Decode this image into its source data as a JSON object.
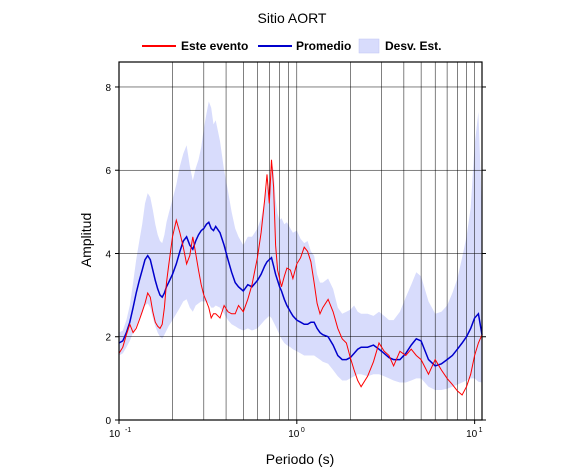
{
  "chart_data": {
    "type": "line",
    "title": "Sitio AORT",
    "xlabel": "Periodo (s)",
    "ylabel": "Amplitud",
    "x_scale": "log",
    "xlim": [
      0.1,
      11.0
    ],
    "ylim": [
      0,
      8.6
    ],
    "grid": true,
    "legend_position": "top",
    "legend": [
      "Este evento",
      "Promedio",
      "Desv. Est."
    ],
    "x_ticks": [
      {
        "value": 0.1,
        "base": "10",
        "exp": "-1"
      },
      {
        "value": 1,
        "base": "10",
        "exp": "0"
      },
      {
        "value": 10,
        "base": "10",
        "exp": "1"
      }
    ],
    "y_ticks": [
      0,
      2,
      4,
      6,
      8
    ],
    "colors": {
      "este_evento": "#ff0000",
      "promedio": "#0000cc",
      "desv_est": "#d8dcfc"
    },
    "series": [
      {
        "name": "Este evento",
        "x": [
          0.1,
          0.105,
          0.11,
          0.115,
          0.12,
          0.125,
          0.13,
          0.135,
          0.14,
          0.145,
          0.15,
          0.155,
          0.16,
          0.165,
          0.17,
          0.175,
          0.18,
          0.185,
          0.19,
          0.2,
          0.21,
          0.22,
          0.23,
          0.24,
          0.25,
          0.26,
          0.27,
          0.28,
          0.29,
          0.3,
          0.31,
          0.32,
          0.33,
          0.34,
          0.35,
          0.37,
          0.39,
          0.41,
          0.43,
          0.45,
          0.47,
          0.5,
          0.53,
          0.56,
          0.6,
          0.63,
          0.66,
          0.68,
          0.7,
          0.72,
          0.74,
          0.76,
          0.78,
          0.8,
          0.82,
          0.85,
          0.88,
          0.92,
          0.95,
          1.0,
          1.05,
          1.1,
          1.15,
          1.2,
          1.25,
          1.3,
          1.35,
          1.4,
          1.5,
          1.6,
          1.7,
          1.8,
          1.9,
          2.0,
          2.1,
          2.2,
          2.3,
          2.5,
          2.7,
          2.9,
          3.1,
          3.3,
          3.5,
          3.8,
          4.1,
          4.4,
          4.7,
          5.0,
          5.5,
          6.0,
          6.5,
          7.0,
          7.5,
          8.0,
          8.5,
          9.0,
          9.5,
          10.0,
          10.5,
          11.0
        ],
        "values": [
          1.6,
          1.75,
          2.05,
          2.3,
          2.1,
          2.2,
          2.4,
          2.6,
          2.8,
          3.05,
          2.95,
          2.6,
          2.35,
          2.25,
          2.2,
          2.3,
          2.7,
          3.3,
          3.7,
          4.4,
          4.8,
          4.5,
          4.15,
          3.75,
          3.95,
          4.4,
          4.0,
          3.6,
          3.25,
          3.0,
          2.85,
          2.7,
          2.45,
          2.55,
          2.55,
          2.45,
          2.75,
          2.6,
          2.55,
          2.55,
          2.75,
          2.6,
          2.9,
          3.25,
          3.9,
          4.5,
          5.3,
          5.9,
          5.2,
          6.25,
          5.6,
          4.2,
          3.6,
          3.4,
          3.2,
          3.45,
          3.65,
          3.6,
          3.4,
          3.75,
          3.9,
          4.15,
          4.05,
          3.8,
          3.3,
          2.8,
          2.55,
          2.7,
          2.9,
          2.6,
          2.2,
          1.95,
          1.85,
          1.5,
          1.2,
          0.95,
          0.8,
          1.05,
          1.4,
          1.85,
          1.65,
          1.55,
          1.3,
          1.65,
          1.55,
          1.7,
          1.55,
          1.45,
          1.1,
          1.45,
          1.2,
          1.0,
          0.85,
          0.7,
          0.6,
          0.8,
          1.1,
          1.55,
          1.85,
          2.05
        ]
      },
      {
        "name": "Promedio",
        "x": [
          0.1,
          0.105,
          0.11,
          0.115,
          0.12,
          0.125,
          0.13,
          0.135,
          0.14,
          0.145,
          0.15,
          0.155,
          0.16,
          0.165,
          0.17,
          0.175,
          0.18,
          0.185,
          0.19,
          0.2,
          0.21,
          0.22,
          0.23,
          0.24,
          0.25,
          0.26,
          0.27,
          0.28,
          0.29,
          0.3,
          0.31,
          0.32,
          0.33,
          0.34,
          0.35,
          0.37,
          0.39,
          0.41,
          0.43,
          0.45,
          0.47,
          0.5,
          0.53,
          0.56,
          0.6,
          0.63,
          0.66,
          0.68,
          0.7,
          0.72,
          0.74,
          0.76,
          0.78,
          0.8,
          0.82,
          0.85,
          0.88,
          0.92,
          0.95,
          1.0,
          1.05,
          1.1,
          1.15,
          1.2,
          1.25,
          1.3,
          1.35,
          1.4,
          1.5,
          1.6,
          1.7,
          1.8,
          1.9,
          2.0,
          2.1,
          2.2,
          2.3,
          2.5,
          2.7,
          2.9,
          3.1,
          3.3,
          3.5,
          3.8,
          4.1,
          4.4,
          4.7,
          5.0,
          5.5,
          6.0,
          6.5,
          7.0,
          7.5,
          8.0,
          8.5,
          9.0,
          9.5,
          10.0,
          10.5,
          11.0
        ],
        "values": [
          1.85,
          1.9,
          2.1,
          2.35,
          2.7,
          3.05,
          3.35,
          3.6,
          3.85,
          3.95,
          3.85,
          3.6,
          3.35,
          3.15,
          3.0,
          2.95,
          3.05,
          3.2,
          3.3,
          3.5,
          3.75,
          4.05,
          4.3,
          4.4,
          4.2,
          4.1,
          4.3,
          4.45,
          4.55,
          4.6,
          4.7,
          4.75,
          4.6,
          4.55,
          4.65,
          4.5,
          4.2,
          3.85,
          3.55,
          3.3,
          3.2,
          3.1,
          3.25,
          3.2,
          3.35,
          3.5,
          3.7,
          3.8,
          3.85,
          3.9,
          3.7,
          3.5,
          3.35,
          3.2,
          3.1,
          2.9,
          2.75,
          2.6,
          2.5,
          2.4,
          2.35,
          2.3,
          2.3,
          2.35,
          2.35,
          2.2,
          2.1,
          2.05,
          2.0,
          1.8,
          1.55,
          1.45,
          1.45,
          1.5,
          1.6,
          1.7,
          1.75,
          1.75,
          1.8,
          1.7,
          1.6,
          1.5,
          1.45,
          1.45,
          1.6,
          1.8,
          1.95,
          1.9,
          1.45,
          1.3,
          1.35,
          1.45,
          1.55,
          1.7,
          1.85,
          2.0,
          2.2,
          2.45,
          2.55,
          2.05
        ]
      },
      {
        "name": "Desv. Est.",
        "x": [
          0.1,
          0.105,
          0.11,
          0.115,
          0.12,
          0.125,
          0.13,
          0.135,
          0.14,
          0.145,
          0.15,
          0.155,
          0.16,
          0.165,
          0.17,
          0.175,
          0.18,
          0.185,
          0.19,
          0.2,
          0.21,
          0.22,
          0.23,
          0.24,
          0.25,
          0.26,
          0.27,
          0.28,
          0.29,
          0.3,
          0.31,
          0.32,
          0.33,
          0.34,
          0.35,
          0.37,
          0.39,
          0.41,
          0.43,
          0.45,
          0.47,
          0.5,
          0.53,
          0.56,
          0.6,
          0.63,
          0.66,
          0.68,
          0.7,
          0.72,
          0.74,
          0.76,
          0.78,
          0.8,
          0.82,
          0.85,
          0.88,
          0.92,
          0.95,
          1.0,
          1.05,
          1.1,
          1.15,
          1.2,
          1.25,
          1.3,
          1.35,
          1.4,
          1.5,
          1.6,
          1.7,
          1.8,
          1.9,
          2.0,
          2.1,
          2.2,
          2.3,
          2.5,
          2.7,
          2.9,
          3.1,
          3.3,
          3.5,
          3.8,
          4.1,
          4.4,
          4.7,
          5.0,
          5.5,
          6.0,
          6.5,
          7.0,
          7.5,
          8.0,
          8.5,
          9.0,
          9.5,
          10.0,
          10.5,
          11.0
        ],
        "upper": [
          2.1,
          2.15,
          2.4,
          2.75,
          3.3,
          3.85,
          4.3,
          4.7,
          5.2,
          5.45,
          5.35,
          5.05,
          4.7,
          4.45,
          4.3,
          4.25,
          4.45,
          4.75,
          4.95,
          5.3,
          5.65,
          6.1,
          6.4,
          6.6,
          6.1,
          5.75,
          6.05,
          6.25,
          6.55,
          7.0,
          7.35,
          7.65,
          7.5,
          7.1,
          7.2,
          6.7,
          6.0,
          5.5,
          5.0,
          4.6,
          4.4,
          4.2,
          4.4,
          4.4,
          4.6,
          4.85,
          5.3,
          5.6,
          5.5,
          6.2,
          6.0,
          5.3,
          4.95,
          4.8,
          4.85,
          4.7,
          4.75,
          4.6,
          4.5,
          4.55,
          4.35,
          4.25,
          4.3,
          4.05,
          3.95,
          3.5,
          3.3,
          3.3,
          3.4,
          3.15,
          2.7,
          2.55,
          2.6,
          2.65,
          2.75,
          2.6,
          2.55,
          2.55,
          2.5,
          2.6,
          2.5,
          2.4,
          2.4,
          2.6,
          2.95,
          3.25,
          3.55,
          3.45,
          2.85,
          2.55,
          2.6,
          2.75,
          3.05,
          3.4,
          3.9,
          4.4,
          5.1,
          6.6,
          7.4,
          5.0
        ],
        "lower": [
          1.55,
          1.6,
          1.75,
          1.9,
          2.1,
          2.25,
          2.45,
          2.6,
          2.75,
          2.8,
          2.7,
          2.45,
          2.25,
          2.1,
          2.0,
          1.95,
          2.05,
          2.15,
          2.25,
          2.4,
          2.55,
          2.7,
          2.85,
          2.9,
          2.7,
          2.6,
          2.75,
          2.8,
          2.85,
          2.85,
          2.85,
          2.8,
          2.7,
          2.7,
          2.75,
          2.7,
          2.55,
          2.4,
          2.3,
          2.25,
          2.2,
          2.15,
          2.2,
          2.15,
          2.2,
          2.3,
          2.4,
          2.45,
          2.5,
          2.45,
          2.35,
          2.25,
          2.15,
          2.05,
          1.95,
          1.85,
          1.8,
          1.75,
          1.7,
          1.65,
          1.6,
          1.55,
          1.55,
          1.55,
          1.55,
          1.5,
          1.45,
          1.4,
          1.35,
          1.2,
          1.05,
          0.95,
          0.95,
          1.0,
          1.05,
          1.1,
          1.1,
          1.05,
          1.1,
          1.1,
          1.05,
          1.0,
          0.95,
          0.9,
          0.9,
          0.95,
          1.0,
          1.0,
          0.8,
          0.72,
          0.72,
          0.75,
          0.8,
          0.85,
          0.9,
          0.95,
          1.0,
          1.0,
          0.92,
          0.9
        ]
      }
    ]
  }
}
